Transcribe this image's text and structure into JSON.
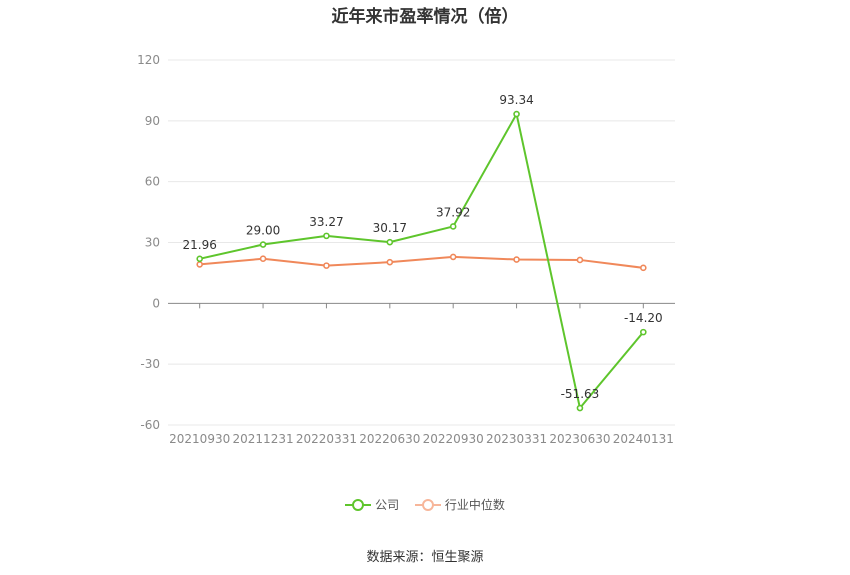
{
  "chart_data": {
    "type": "line",
    "title": "近年来市盈率情况（倍）",
    "categories": [
      "20210930",
      "20211231",
      "20220331",
      "20220630",
      "20220930",
      "20230331",
      "20230630",
      "20240131"
    ],
    "series": [
      {
        "name": "公司",
        "color": "#5ec52c",
        "values": [
          21.96,
          29.0,
          33.27,
          30.17,
          37.92,
          93.34,
          -51.63,
          -14.2
        ],
        "labels": [
          "21.96",
          "29.00",
          "33.27",
          "30.17",
          "37.92",
          "93.34",
          "-51.63",
          "-14.20"
        ]
      },
      {
        "name": "行业中位数",
        "color": "#f0885a",
        "values": [
          19.2,
          22.0,
          18.6,
          20.3,
          22.9,
          21.6,
          21.4,
          17.5
        ]
      }
    ],
    "yticks": [
      120,
      90,
      60,
      30,
      0,
      -30,
      -60
    ],
    "ylim": [
      -60,
      120
    ],
    "grid": true,
    "legend_position": "bottom"
  },
  "source": "数据来源：恒生聚源"
}
